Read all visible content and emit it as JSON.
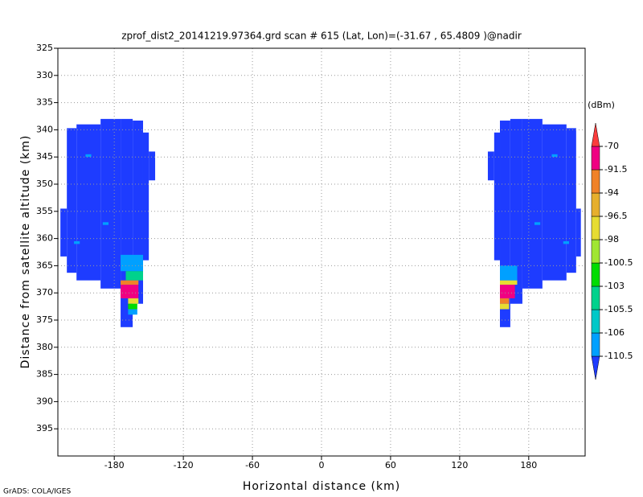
{
  "chart_data": {
    "type": "shaded",
    "title": "zprof_dist2_20141219.97364.grd   scan # 615  (Lat, Lon)=(-31.67 , 65.4809 )@nadir",
    "x_label": "Horizontal distance (km)",
    "y_label": "Distance from satellite altitude (km)",
    "credit": "GrADS: COLA/IGES",
    "xlim": [
      -229,
      229
    ],
    "ylim": [
      400,
      325
    ],
    "xticks": [
      -180,
      -120,
      -60,
      0,
      60,
      120,
      180
    ],
    "yticks": [
      325,
      330,
      335,
      340,
      345,
      350,
      355,
      360,
      365,
      370,
      375,
      380,
      385,
      390,
      395
    ],
    "grid": true,
    "colorbar": {
      "unit": "(dBm)",
      "levels": [
        -110.5,
        -106,
        -105.5,
        -103,
        -100.5,
        -98,
        -96.5,
        -94,
        -91.5,
        -70
      ],
      "colors": [
        "#1e3cff",
        "#00a0ff",
        "#00c8c8",
        "#00d28c",
        "#00dc00",
        "#a0e632",
        "#e6dc32",
        "#e6af2d",
        "#f08228",
        "#f00082",
        "#fa3c3c"
      ]
    },
    "cells": [
      {
        "x": [
          -226.8,
          -221.2
        ],
        "y": [
          354.5,
          363.3
        ],
        "value": -115
      },
      {
        "x": [
          -221.2,
          -212.8
        ],
        "y": [
          339.7,
          366.3
        ],
        "value": -115
      },
      {
        "x": [
          -212.8,
          -191.9
        ],
        "y": [
          339,
          367.7
        ],
        "value": -115
      },
      {
        "x": [
          -191.9,
          -174.5
        ],
        "y": [
          338,
          369.2
        ],
        "value": -115
      },
      {
        "x": [
          -174.5,
          -164
        ],
        "y": [
          338,
          376.3
        ],
        "value": -115
      },
      {
        "x": [
          -164,
          -155
        ],
        "y": [
          338.3,
          372
        ],
        "value": -115
      },
      {
        "x": [
          -155,
          -150
        ],
        "y": [
          340.5,
          364
        ],
        "value": -115
      },
      {
        "x": [
          -150,
          -144.5
        ],
        "y": [
          344,
          349.3
        ],
        "value": -115
      },
      {
        "x": [
          -205,
          -200
        ],
        "y": [
          344.5,
          345
        ],
        "value": -108
      },
      {
        "x": [
          -190,
          -185
        ],
        "y": [
          357,
          357.5
        ],
        "value": -108
      },
      {
        "x": [
          -215,
          -210
        ],
        "y": [
          360.5,
          361
        ],
        "value": -108
      },
      {
        "x": [
          -174.5,
          -155
        ],
        "y": [
          363,
          366
        ],
        "value": -108
      },
      {
        "x": [
          -170,
          -155
        ],
        "y": [
          366,
          367.7
        ],
        "value": -104
      },
      {
        "x": [
          -174.5,
          -159
        ],
        "y": [
          367.7,
          368.5
        ],
        "value": -93
      },
      {
        "x": [
          -174.5,
          -159
        ],
        "y": [
          368.5,
          371
        ],
        "value": -80
      },
      {
        "x": [
          -168,
          -159
        ],
        "y": [
          371,
          372
        ],
        "value": -97
      },
      {
        "x": [
          -168,
          -160
        ],
        "y": [
          372,
          373
        ],
        "value": -101
      },
      {
        "x": [
          -168,
          -160
        ],
        "y": [
          373,
          374
        ],
        "value": -108
      },
      {
        "x": [
          221.2,
          225.3
        ],
        "y": [
          354.5,
          363.3
        ],
        "value": -115
      },
      {
        "x": [
          212.8,
          221.2
        ],
        "y": [
          339.7,
          366.3
        ],
        "value": -115
      },
      {
        "x": [
          191.9,
          212.8
        ],
        "y": [
          339,
          367.7
        ],
        "value": -115
      },
      {
        "x": [
          174.5,
          191.9
        ],
        "y": [
          338,
          369.2
        ],
        "value": -115
      },
      {
        "x": [
          164,
          174.5
        ],
        "y": [
          338,
          372
        ],
        "value": -115
      },
      {
        "x": [
          155,
          164
        ],
        "y": [
          338.3,
          376.3
        ],
        "value": -115
      },
      {
        "x": [
          150,
          155
        ],
        "y": [
          340.5,
          364
        ],
        "value": -115
      },
      {
        "x": [
          144.5,
          150
        ],
        "y": [
          344,
          349.3
        ],
        "value": -115
      },
      {
        "x": [
          200,
          205
        ],
        "y": [
          344.5,
          345
        ],
        "value": -108
      },
      {
        "x": [
          185,
          190
        ],
        "y": [
          357,
          357.5
        ],
        "value": -108
      },
      {
        "x": [
          210,
          215
        ],
        "y": [
          360.5,
          361
        ],
        "value": -108
      },
      {
        "x": [
          155,
          170
        ],
        "y": [
          365,
          367.7
        ],
        "value": -108
      },
      {
        "x": [
          155,
          170
        ],
        "y": [
          367.7,
          368.5
        ],
        "value": -97
      },
      {
        "x": [
          155,
          168
        ],
        "y": [
          368.5,
          371
        ],
        "value": -80
      },
      {
        "x": [
          155,
          163
        ],
        "y": [
          371,
          372
        ],
        "value": -93
      },
      {
        "x": [
          155,
          163
        ],
        "y": [
          372,
          373
        ],
        "value": -97
      }
    ]
  }
}
